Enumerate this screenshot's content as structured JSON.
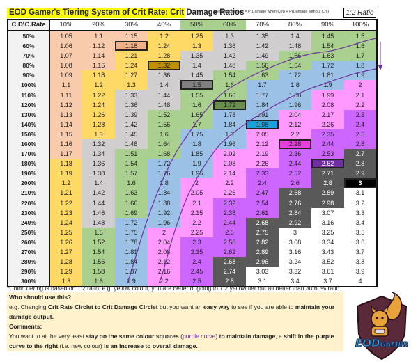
{
  "header": {
    "title": "EOD Gamer's Tiering System of Crit Rate: Crit Damage Ratios",
    "formula": "Average Damage = P(Damage when Crit) + P(Damage without Crit)",
    "ratio_label": "1:2 Ratio"
  },
  "table": {
    "corner": "C.D\\C.Rate",
    "columns": [
      "10%",
      "20%",
      "30%",
      "40%",
      "50%",
      "60%",
      "70%",
      "80%",
      "90%",
      "100%"
    ],
    "highlighted_columns": [
      "50%",
      "60%"
    ],
    "tier_colors": {
      "P": "#f8cbad",
      "Y": "#ffd966",
      "G": "#d0cece",
      "N": "#a9d08e",
      "B": "#9bc2e6",
      "K": "#ff99ff",
      "U": "#cc66ff",
      "D": "#595959",
      "W": "#ffffff",
      "X": "#000000",
      "p": "#f4b084",
      "y": "#bf8f00",
      "g": "#808080",
      "n": "#6a8f4f",
      "b": "#1ba1dc",
      "k": "#e83fe0",
      "u": "#7030a0",
      "x": "#000000"
    },
    "tier_legend": "uppercase = tier colour, lowercase = boxed 1:2 ratio cell",
    "rows": [
      {
        "label": "50%",
        "values": [
          1.05,
          1.1,
          1.15,
          1.2,
          1.25,
          1.3,
          1.35,
          1.4,
          1.45,
          1.5
        ],
        "tiers": "PPPYYGGGNN"
      },
      {
        "label": "60%",
        "values": [
          1.06,
          1.12,
          1.18,
          1.24,
          1.3,
          1.36,
          1.42,
          1.48,
          1.54,
          1.6
        ],
        "tiers": "PPpYYGGGNN"
      },
      {
        "label": "70%",
        "values": [
          1.07,
          1.14,
          1.21,
          1.28,
          1.35,
          1.42,
          1.49,
          1.56,
          1.63,
          1.7
        ],
        "tiers": "PPYYGGGNNN"
      },
      {
        "label": "80%",
        "values": [
          1.08,
          1.16,
          1.24,
          1.32,
          1.4,
          1.48,
          1.56,
          1.64,
          1.72,
          1.8
        ],
        "tiers": "PPYyGGNNBB"
      },
      {
        "label": "90%",
        "values": [
          1.09,
          1.18,
          1.27,
          1.36,
          1.45,
          1.54,
          1.63,
          1.72,
          1.81,
          1.9
        ],
        "tiers": "PYYGGNNBBB"
      },
      {
        "label": "100%",
        "values": [
          1.1,
          1.2,
          1.3,
          1.4,
          1.5,
          1.6,
          1.7,
          1.8,
          1.9,
          2
        ],
        "tiers": "PYYGgNBBBK"
      },
      {
        "label": "110%",
        "values": [
          1.11,
          1.22,
          1.33,
          1.44,
          1.55,
          1.66,
          1.77,
          1.88,
          1.99,
          2.1
        ],
        "tiers": "PYGGNNBBKK"
      },
      {
        "label": "120%",
        "values": [
          1.12,
          1.24,
          1.36,
          1.48,
          1.6,
          1.72,
          1.84,
          1.96,
          2.08,
          2.2
        ],
        "tiers": "PYGGNnBBKK"
      },
      {
        "label": "130%",
        "values": [
          1.13,
          1.26,
          1.39,
          1.52,
          1.65,
          1.78,
          1.91,
          2.04,
          2.17,
          2.3
        ],
        "tiers": "PYGNNBBKKU"
      },
      {
        "label": "140%",
        "values": [
          1.14,
          1.28,
          1.42,
          1.56,
          1.7,
          1.84,
          1.98,
          2.12,
          2.26,
          2.4
        ],
        "tiers": "PYGNNBbKKU"
      },
      {
        "label": "150%",
        "values": [
          1.15,
          1.3,
          1.45,
          1.6,
          1.75,
          1.9,
          2.05,
          2.2,
          2.35,
          2.5
        ],
        "tiers": "PYGNBBKKUU"
      },
      {
        "label": "160%",
        "values": [
          1.16,
          1.32,
          1.48,
          1.64,
          1.8,
          1.96,
          2.12,
          2.28,
          2.44,
          2.6
        ],
        "tiers": "PGGNBBKkUU"
      },
      {
        "label": "170%",
        "values": [
          1.17,
          1.34,
          1.51,
          1.68,
          1.85,
          2.02,
          2.19,
          2.36,
          2.53,
          2.7
        ],
        "tiers": "PGNNBKKUUD"
      },
      {
        "label": "180%",
        "values": [
          1.18,
          1.36,
          1.54,
          1.72,
          1.9,
          2.08,
          2.26,
          2.44,
          2.62,
          2.8
        ],
        "tiers": "YGNBBKKUuD"
      },
      {
        "label": "190%",
        "values": [
          1.19,
          1.38,
          1.57,
          1.76,
          1.95,
          2.14,
          2.33,
          2.52,
          2.71,
          2.9
        ],
        "tiers": "YGNBBKUUDD"
      },
      {
        "label": "200%",
        "values": [
          1.2,
          1.4,
          1.6,
          1.8,
          2,
          2.2,
          2.4,
          2.6,
          2.8,
          3
        ],
        "tiers": "YGNBKKUUDx"
      },
      {
        "label": "210%",
        "values": [
          1.21,
          1.42,
          1.63,
          1.84,
          2.05,
          2.26,
          2.47,
          2.68,
          2.89,
          3.1
        ],
        "tiers": "YGNBKKUDDW"
      },
      {
        "label": "220%",
        "values": [
          1.22,
          1.44,
          1.66,
          1.88,
          2.1,
          2.32,
          2.54,
          2.76,
          2.98,
          3.2
        ],
        "tiers": "YGNBKUUDDW"
      },
      {
        "label": "230%",
        "values": [
          1.23,
          1.46,
          1.69,
          1.92,
          2.15,
          2.38,
          2.61,
          2.84,
          3.07,
          3.3
        ],
        "tiers": "YGNBKUUDWW"
      },
      {
        "label": "240%",
        "values": [
          1.24,
          1.48,
          1.72,
          1.96,
          2.2,
          2.44,
          2.68,
          2.92,
          3.16,
          3.4
        ],
        "tiers": "YGBBKUDDWW"
      },
      {
        "label": "250%",
        "values": [
          1.25,
          1.5,
          1.75,
          2,
          2.25,
          2.5,
          2.75,
          3,
          3.25,
          3.5
        ],
        "tiers": "YNBKKUDWWW"
      },
      {
        "label": "260%",
        "values": [
          1.26,
          1.52,
          1.78,
          2.04,
          2.3,
          2.56,
          2.82,
          3.08,
          3.34,
          3.6
        ],
        "tiers": "YNBKUUDWWW"
      },
      {
        "label": "270%",
        "values": [
          1.27,
          1.54,
          1.81,
          2.08,
          2.35,
          2.62,
          2.89,
          3.16,
          3.43,
          3.7
        ],
        "tiers": "YNBKUUDWWW"
      },
      {
        "label": "280%",
        "values": [
          1.28,
          1.56,
          1.84,
          2.12,
          2.4,
          2.68,
          2.96,
          3.24,
          3.52,
          3.8
        ],
        "tiers": "YNBKUDDWWW"
      },
      {
        "label": "290%",
        "values": [
          1.29,
          1.58,
          1.87,
          2.16,
          2.45,
          2.74,
          3.03,
          3.32,
          3.61,
          3.9
        ],
        "tiers": "YNBKUDWWWW"
      },
      {
        "label": "300%",
        "values": [
          1.3,
          1.6,
          1.9,
          2.2,
          2.5,
          2.8,
          3.1,
          3.4,
          3.7,
          4
        ],
        "tiers": "YNBKUDWWWW"
      }
    ],
    "curve_color": "#7030a0"
  },
  "footnote": "*Color Tiering is based on 1:2 ratio, e.g. yellow colour, you are better of going to 1:2 yellow tier but all better than 30:60% ratio.",
  "notes": {
    "q1": "Who should use this?",
    "p1": [
      "e.g. Changing ",
      "Crit Rate Circlet to Crit Damage Circlet",
      " but you want an ",
      "easy way",
      " to see if you are able to ",
      "maintain your damage output."
    ],
    "q2": "Comments:",
    "p2": [
      "You want to at the very least ",
      "stay on the same colour squares",
      " (",
      "purple curve",
      ") ",
      "to maintain damage",
      ", a ",
      "shift in the purple curve to the right",
      " (i.e. new colour) ",
      "is an increase to overall damage."
    ]
  },
  "logo": {
    "text": "EODGAMER",
    "icon": "squirrel-gamer-shield-icon"
  }
}
